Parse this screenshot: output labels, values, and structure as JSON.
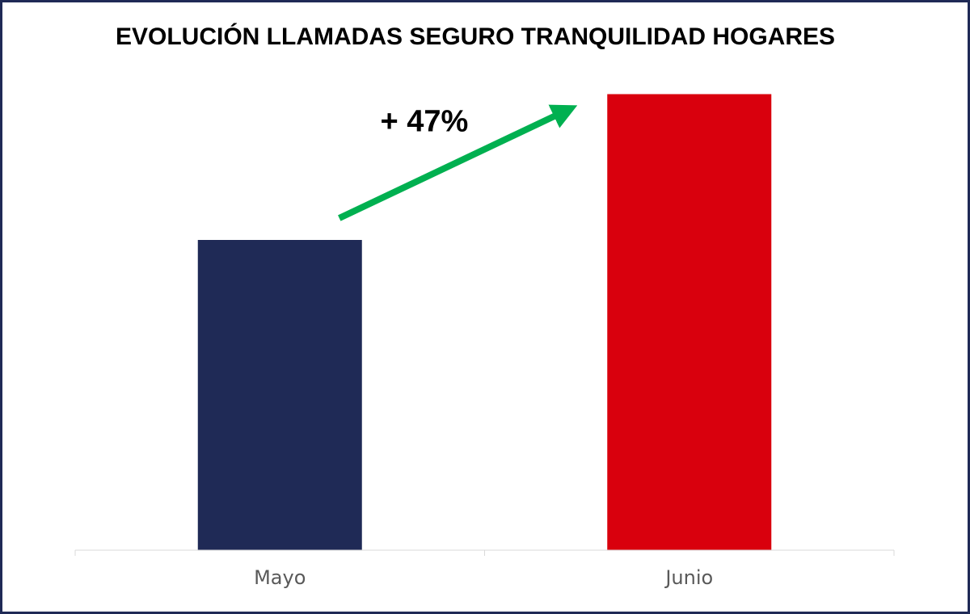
{
  "chart_data": {
    "type": "bar",
    "title": "EVOLUCIÓN LLAMADAS SEGURO TRANQUILIDAD HOGARES",
    "categories": [
      "Mayo",
      "Junio"
    ],
    "values": [
      100,
      147
    ],
    "bar_colors": [
      "#1f2a56",
      "#d9000d"
    ],
    "ylim": [
      0,
      150
    ],
    "grid": false,
    "annotation": {
      "text": "+ 47%",
      "arrow_color": "#00b050",
      "from_category": "Mayo",
      "to_category": "Junio"
    },
    "axis_color": "#d9d9d9",
    "frame_color": "#1f2a56"
  }
}
